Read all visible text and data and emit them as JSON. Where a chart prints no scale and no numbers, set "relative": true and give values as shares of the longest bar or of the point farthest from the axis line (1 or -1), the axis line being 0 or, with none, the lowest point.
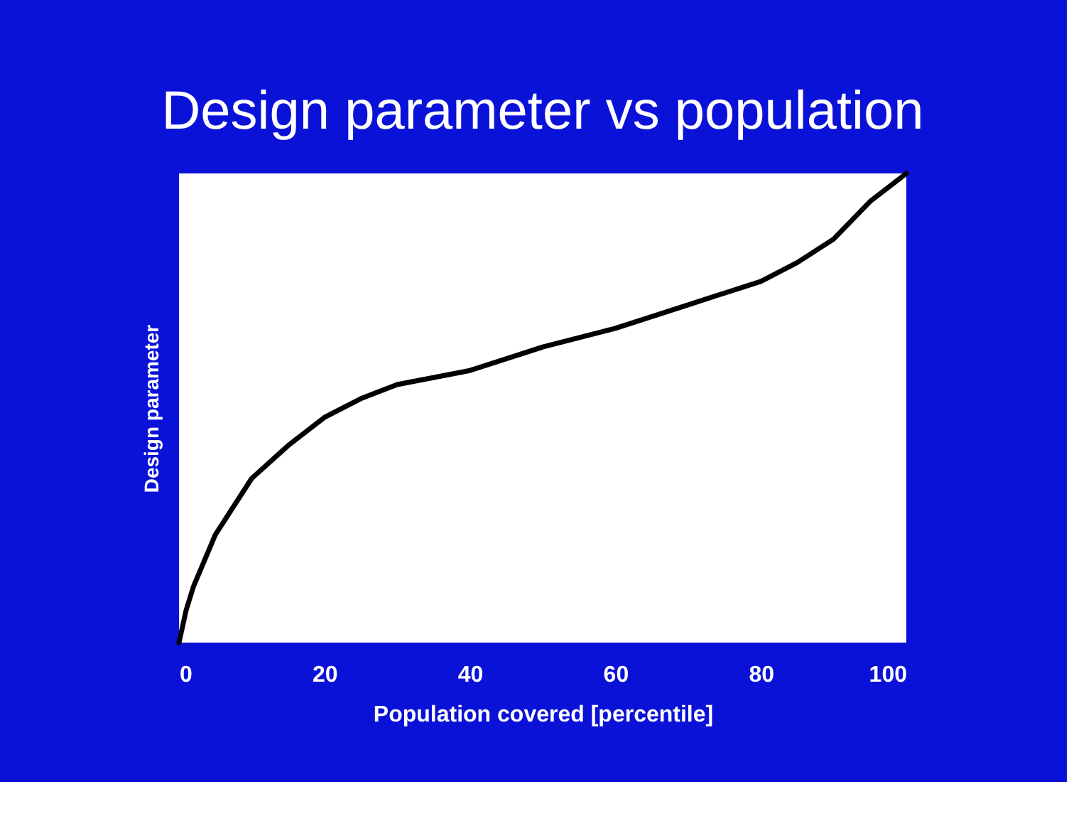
{
  "chart_data": {
    "type": "line",
    "title": "Design parameter vs population",
    "xlabel": "Population covered [percentile]",
    "ylabel": "Design parameter",
    "relative": true,
    "xlim": [
      0,
      100
    ],
    "xticks": [
      0,
      20,
      40,
      60,
      80,
      100
    ],
    "grid": false,
    "x": [
      0,
      1,
      2,
      5,
      10,
      15,
      20,
      25,
      30,
      40,
      50,
      60,
      70,
      80,
      85,
      90,
      95,
      100
    ],
    "series": [
      {
        "color": "#000000",
        "values": [
          0,
          0.07,
          0.12,
          0.23,
          0.35,
          0.42,
          0.48,
          0.52,
          0.55,
          0.58,
          0.63,
          0.67,
          0.72,
          0.77,
          0.81,
          0.86,
          0.94,
          1.0
        ]
      }
    ]
  }
}
